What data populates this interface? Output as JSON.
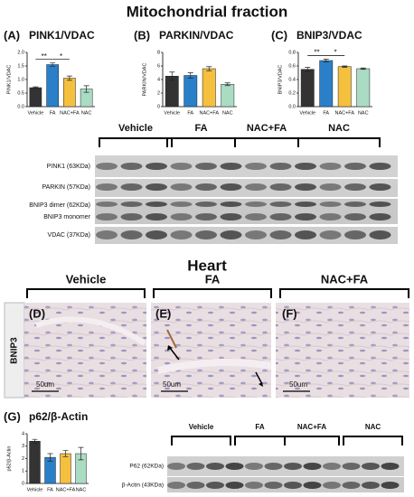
{
  "title": "Mitochondrial fraction",
  "chart_data": [
    {
      "type": "bar",
      "panel": "(A)",
      "title": "PINK1/VDAC",
      "ylabel": "PINK1/VDAC",
      "categories": [
        "Vehicle",
        "FA",
        "NAC+FA",
        "NAC"
      ],
      "values": [
        0.7,
        1.55,
        1.05,
        0.65
      ],
      "errors": [
        0.03,
        0.06,
        0.08,
        0.12
      ],
      "colors": [
        "#333333",
        "#2a7fc9",
        "#f5c03e",
        "#a9dcc3"
      ],
      "ylim": [
        0,
        2
      ],
      "yticks": [
        {
          "value": 0,
          "label": "0.0"
        },
        0.5,
        {
          "value": 1,
          "label": "1.0"
        },
        1.5,
        {
          "value": 2,
          "label": "2.0"
        }
      ],
      "annotations": [
        {
          "text": "**",
          "between": [
            0,
            1
          ]
        },
        {
          "text": "*",
          "between": [
            1,
            2
          ]
        }
      ]
    },
    {
      "type": "bar",
      "panel": "(B)",
      "title": "PARKIN/VDAC",
      "ylabel": "PARKIN/VDAC",
      "categories": [
        "Vehicle",
        "FA",
        "NAC+FA",
        "NAC"
      ],
      "values": [
        4.5,
        4.6,
        5.6,
        3.3
      ],
      "errors": [
        0.6,
        0.4,
        0.3,
        0.2
      ],
      "colors": [
        "#333333",
        "#2a7fc9",
        "#f5c03e",
        "#a9dcc3"
      ],
      "ylim": [
        0,
        8
      ],
      "yticks": [
        0,
        2,
        4,
        6,
        8
      ]
    },
    {
      "type": "bar",
      "panel": "(C)",
      "title": "BNIP3/VDAC",
      "ylabel": "BNIP3/VDAC",
      "categories": [
        "Vehicle",
        "FA",
        "NAC+FA",
        "NAC"
      ],
      "values": [
        0.55,
        0.68,
        0.59,
        0.56
      ],
      "errors": [
        0.03,
        0.02,
        0.01,
        0.01
      ],
      "colors": [
        "#333333",
        "#2a7fc9",
        "#f5c03e",
        "#a9dcc3"
      ],
      "ylim": [
        0,
        0.8
      ],
      "yticks": [
        {
          "value": 0,
          "label": "0.0"
        },
        0.2,
        0.4,
        0.6,
        0.8
      ],
      "annotations": [
        {
          "text": "**",
          "between": [
            0,
            1
          ]
        },
        {
          "text": "*",
          "between": [
            1,
            2
          ]
        }
      ]
    },
    {
      "type": "bar",
      "panel": "(G)",
      "title": "p62/β-Actin",
      "ylabel": "p62/β-Actin",
      "categories": [
        "Vehicle",
        "FA",
        "NAC+FA",
        "NAC"
      ],
      "values": [
        3.4,
        2.1,
        2.4,
        2.4
      ],
      "errors": [
        0.15,
        0.3,
        0.25,
        0.5
      ],
      "colors": [
        "#333333",
        "#2a7fc9",
        "#f5c03e",
        "#a9dcc3"
      ],
      "ylim": [
        0,
        4
      ],
      "yticks": [
        0,
        1,
        2,
        3,
        4
      ]
    }
  ],
  "blot1": {
    "groups": [
      "Vehicle",
      "FA",
      "NAC+FA",
      "NAC"
    ],
    "rows": [
      "PINK1 (63KDa)",
      "PARKIN (57KDa)",
      "BNIP3 dimer (62KDa)",
      "BNIP3 monomer",
      "VDAC  (37KDa)"
    ]
  },
  "heart": {
    "title": "Heart",
    "groups": [
      "Vehicle",
      "FA",
      "NAC+FA"
    ],
    "panels": [
      "(D)",
      "(E)",
      "(F)"
    ],
    "stain": "BNIP3",
    "scale": [
      "50um",
      "50um",
      "50um"
    ]
  },
  "blot2": {
    "groups": [
      "Vehicle",
      "FA",
      "NAC+FA",
      "NAC"
    ],
    "rows": [
      "P62 (62KDa)",
      "β-Actin (43KDa)"
    ]
  }
}
